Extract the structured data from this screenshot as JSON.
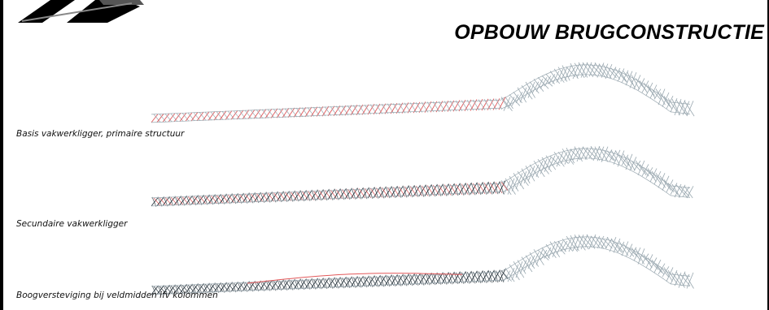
{
  "title": "OPBOUW BRUGCONSTRUCTIE",
  "colors": {
    "primary_truss": "#e2585a",
    "secondary_truss": "#2e3a42",
    "arch_truss": "#9aa8b0",
    "background": "#ffffff",
    "frame": "#000000"
  },
  "steps": [
    {
      "caption": "Basis vakwerkligger, primaire structuur",
      "emphasis": "primary"
    },
    {
      "caption": "Secundaire vakwerkligger",
      "emphasis": "secondary"
    },
    {
      "caption": "Boogversteviging bij veldmidden ifv kolommen",
      "emphasis": "arch"
    }
  ]
}
